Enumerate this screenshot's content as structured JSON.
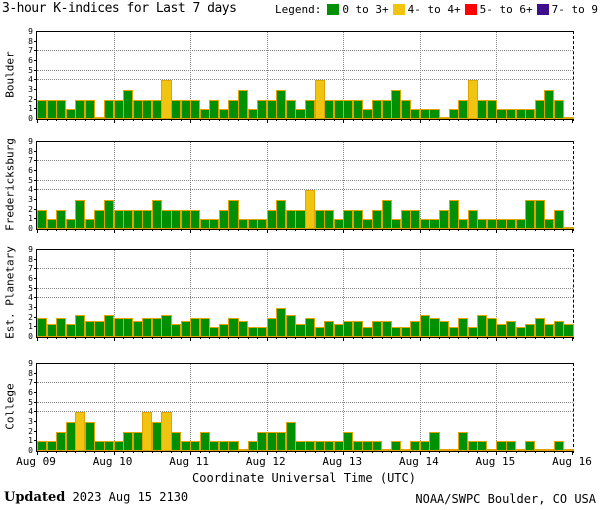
{
  "title": "3-hour K-indices for Last 7 days",
  "legend": {
    "label": "Legend:",
    "items": [
      {
        "label": "0 to 3+",
        "color": "#019001"
      },
      {
        "label": "4- to 4+",
        "color": "#F0C411"
      },
      {
        "label": "5- to 6+",
        "color": "#FF0000"
      },
      {
        "label": "7- to 9",
        "color": "#3F0E8C"
      }
    ]
  },
  "x_axis": {
    "label": "Coordinate Universal Time (UTC)",
    "ticks": [
      "Aug 09",
      "Aug 10",
      "Aug 11",
      "Aug 12",
      "Aug 13",
      "Aug 14",
      "Aug 15",
      "Aug 16"
    ]
  },
  "y_axis": {
    "ticks": [
      "9",
      "8",
      "7",
      "6",
      "5",
      "4",
      "3",
      "2",
      "1",
      "0"
    ]
  },
  "footer": {
    "updated_label": "Updated",
    "updated_value": "2023 Aug 15 2130",
    "source": "NOAA/SWPC Boulder, CO USA"
  },
  "chart_data": {
    "type": "bar",
    "bars_per_day": 8,
    "interval_hours": 3,
    "categories": [
      "Aug 09",
      "Aug 10",
      "Aug 11",
      "Aug 12",
      "Aug 13",
      "Aug 14",
      "Aug 15"
    ],
    "ylim": [
      0,
      9
    ],
    "hgrid_values": [
      4,
      5,
      7
    ],
    "colors": {
      "green_fill": "#019001",
      "yellow_fill": "#F0C411",
      "red_fill": "#FF0000",
      "purple_fill": "#3F0E8C",
      "bar_outline": "#E2A400"
    },
    "color_rule": {
      "green_max": 3.5,
      "yellow_max": 4.5,
      "red_max": 6.5,
      "purple_max": 9
    },
    "series": [
      {
        "name": "Boulder",
        "values": [
          2,
          2,
          2,
          1,
          2,
          2,
          0,
          2,
          2,
          3,
          2,
          2,
          2,
          4,
          2,
          2,
          2,
          1,
          2,
          1,
          2,
          3,
          1,
          2,
          2,
          3,
          2,
          1,
          2,
          4,
          2,
          2,
          2,
          2,
          1,
          2,
          2,
          3,
          2,
          1,
          1,
          1,
          0,
          1,
          2,
          4,
          2,
          2,
          1,
          1,
          1,
          1,
          2,
          3,
          2,
          0
        ]
      },
      {
        "name": "Fredericksburg",
        "values": [
          2,
          1,
          2,
          1,
          3,
          1,
          2,
          3,
          2,
          2,
          2,
          2,
          3,
          2,
          2,
          2,
          2,
          1,
          1,
          2,
          3,
          1,
          1,
          1,
          2,
          3,
          2,
          2,
          4,
          2,
          2,
          1,
          2,
          2,
          1,
          2,
          3,
          1,
          2,
          2,
          1,
          1,
          2,
          3,
          1,
          2,
          1,
          1,
          1,
          1,
          1,
          3,
          3,
          1,
          2,
          0
        ]
      },
      {
        "name": "Est. Planetary",
        "values": [
          2,
          1.3,
          2,
          1.3,
          2.3,
          1.7,
          1.7,
          2.3,
          2,
          2,
          1.7,
          2,
          2,
          2.3,
          1.3,
          1.7,
          2,
          2,
          1,
          1.3,
          2,
          1.7,
          1,
          1,
          2,
          3,
          2.3,
          1.3,
          2,
          1,
          1.7,
          1.3,
          1.7,
          1.7,
          1,
          1.7,
          1.7,
          1,
          1,
          1.7,
          2.3,
          2,
          1.7,
          1,
          2,
          1,
          2.3,
          2,
          1.3,
          1.7,
          1,
          1.3,
          2,
          1.3,
          1.7,
          1.3
        ]
      },
      {
        "name": "College",
        "values": [
          1,
          1,
          2,
          3,
          4,
          3,
          1,
          1,
          1,
          2,
          2,
          4,
          3,
          4,
          2,
          1,
          1,
          2,
          1,
          1,
          1,
          0,
          1,
          2,
          2,
          2,
          3,
          1,
          1,
          1,
          1,
          1,
          2,
          1,
          1,
          1,
          0,
          1,
          0,
          1,
          1,
          2,
          0,
          0,
          2,
          1,
          1,
          0,
          1,
          1,
          0,
          1,
          0,
          0,
          1,
          0
        ]
      }
    ]
  }
}
